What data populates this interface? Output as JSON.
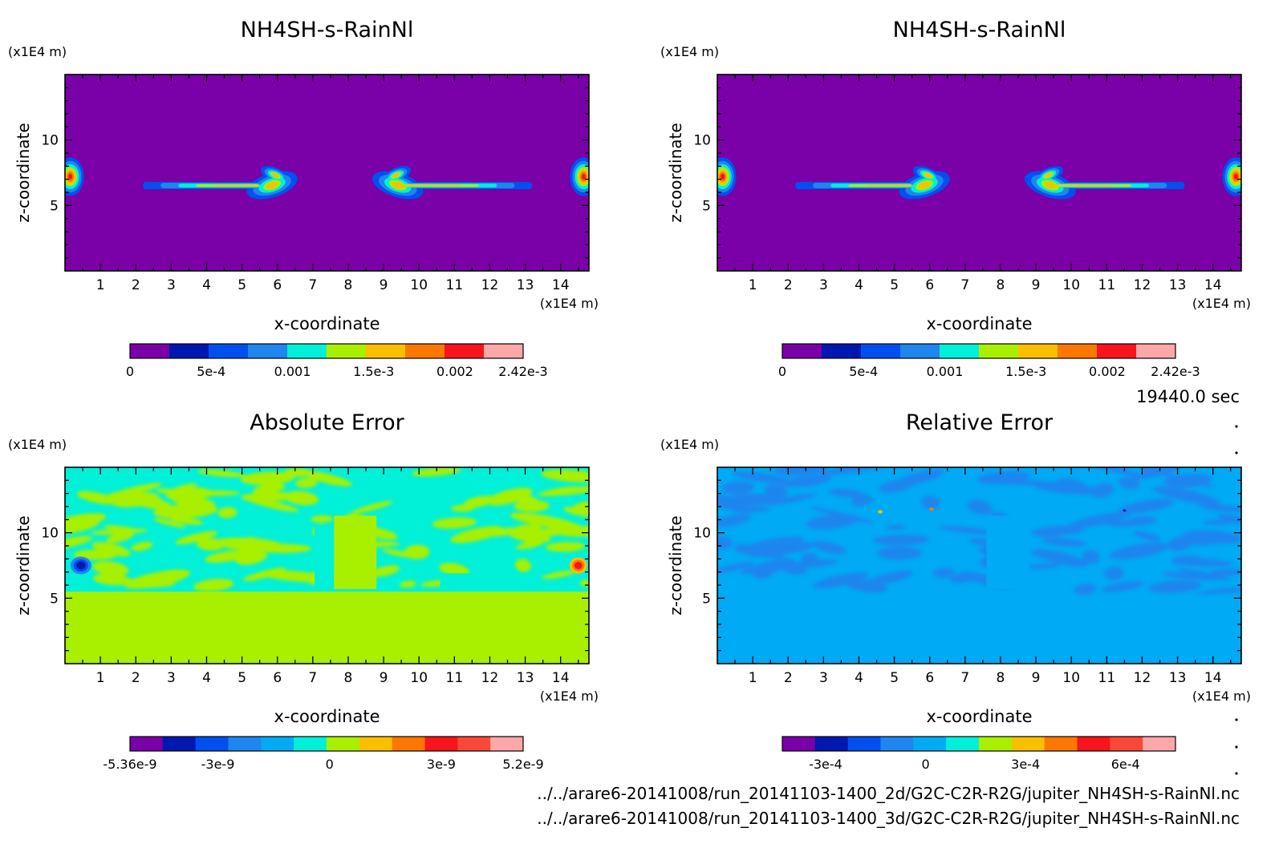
{
  "time_label": "19440.0 sec",
  "file_paths": [
    "../../arare6-20141008/run_20141103-1400_2d/G2C-C2R-R2G/jupiter_NH4SH-s-RainNl.nc",
    "../../arare6-20141008/run_20141103-1400_3d/G2C-C2R-R2G/jupiter_NH4SH-s-RainNl.nc"
  ],
  "colors": {
    "purple": "#7a00a8",
    "navy": "#0018b0",
    "blue": "#0050f0",
    "azure": "#1e86ee",
    "sky": "#00aaf4",
    "cyan": "#00f0d8",
    "lime": "#a8f000",
    "yellow": "#f8c000",
    "orange": "#fc7800",
    "red": "#f8141c",
    "salmon": "#f84838",
    "pink": "#fca8a8"
  },
  "chart_data": [
    {
      "type": "heatmap",
      "title": "NH4SH-s-RainNl",
      "xlabel": "x-coordinate",
      "ylabel": "z-coordinate",
      "x_unit": "(x1E4 m)",
      "y_unit": "(x1E4 m)",
      "xlim": [
        0,
        14.8
      ],
      "ylim": [
        0,
        15
      ],
      "x_ticks": [
        "1",
        "2",
        "3",
        "4",
        "5",
        "6",
        "7",
        "8",
        "9",
        "10",
        "11",
        "12",
        "13",
        "14"
      ],
      "y_ticks": [
        "5",
        "10"
      ],
      "background_level": 0,
      "colorbar": {
        "range": [
          0,
          0.00242
        ],
        "levels": 10,
        "tick_labels": [
          "0",
          "5e-4",
          "0.001",
          "1.5e-3",
          "0.002",
          "2.42e-3"
        ],
        "tick_values": [
          0,
          0.0005,
          0.001,
          0.0015,
          0.002,
          0.00242
        ],
        "colors": [
          "purple",
          "navy",
          "blue",
          "azure",
          "cyan",
          "lime",
          "yellow",
          "orange",
          "red",
          "pink"
        ]
      }
    },
    {
      "type": "heatmap",
      "title": "NH4SH-s-RainNl",
      "xlabel": "x-coordinate",
      "ylabel": "z-coordinate",
      "x_unit": "(x1E4 m)",
      "y_unit": "(x1E4 m)",
      "xlim": [
        0,
        14.8
      ],
      "ylim": [
        0,
        15
      ],
      "x_ticks": [
        "1",
        "2",
        "3",
        "4",
        "5",
        "6",
        "7",
        "8",
        "9",
        "10",
        "11",
        "12",
        "13",
        "14"
      ],
      "y_ticks": [
        "5",
        "10"
      ],
      "background_level": 0,
      "colorbar": {
        "range": [
          0,
          0.00242
        ],
        "levels": 10,
        "tick_labels": [
          "0",
          "5e-4",
          "0.001",
          "1.5e-3",
          "0.002",
          "2.42e-3"
        ],
        "tick_values": [
          0,
          0.0005,
          0.001,
          0.0015,
          0.002,
          0.00242
        ],
        "colors": [
          "purple",
          "navy",
          "blue",
          "azure",
          "cyan",
          "lime",
          "yellow",
          "orange",
          "red",
          "pink"
        ]
      }
    },
    {
      "type": "heatmap",
      "title": "Absolute Error",
      "xlabel": "x-coordinate",
      "ylabel": "z-coordinate",
      "x_unit": "(x1E4 m)",
      "y_unit": "(x1E4 m)",
      "xlim": [
        0,
        14.8
      ],
      "ylim": [
        0,
        15
      ],
      "x_ticks": [
        "1",
        "2",
        "3",
        "4",
        "5",
        "6",
        "7",
        "8",
        "9",
        "10",
        "11",
        "12",
        "13",
        "14"
      ],
      "y_ticks": [
        "5",
        "10"
      ],
      "background_level": 0,
      "colorbar": {
        "range": [
          -5.36e-09,
          5.2e-09
        ],
        "levels": 11,
        "tick_labels": [
          "-5.36e-9",
          "-3e-9",
          "0",
          "3e-9",
          "5.2e-9"
        ],
        "tick_values": [
          -5.36e-09,
          -3e-09,
          0,
          3e-09,
          5.2e-09
        ],
        "colors": [
          "purple",
          "navy",
          "blue",
          "azure",
          "sky",
          "cyan",
          "lime",
          "yellow",
          "orange",
          "red",
          "salmon",
          "pink"
        ]
      }
    },
    {
      "type": "heatmap",
      "title": "Relative Error",
      "xlabel": "x-coordinate",
      "ylabel": "z-coordinate",
      "x_unit": "(x1E4 m)",
      "y_unit": "(x1E4 m)",
      "xlim": [
        0,
        14.8
      ],
      "ylim": [
        0,
        15
      ],
      "x_ticks": [
        "1",
        "2",
        "3",
        "4",
        "5",
        "6",
        "7",
        "8",
        "9",
        "10",
        "11",
        "12",
        "13",
        "14"
      ],
      "y_ticks": [
        "5",
        "10"
      ],
      "background_level": 0,
      "colorbar": {
        "range": [
          -0.00043,
          0.00075
        ],
        "levels": 11,
        "tick_labels": [
          "-3e-4",
          "0",
          "3e-4",
          "6e-4"
        ],
        "tick_values": [
          -0.0003,
          0,
          0.0003,
          0.0006
        ],
        "colors": [
          "purple",
          "navy",
          "blue",
          "azure",
          "sky",
          "cyan",
          "lime",
          "yellow",
          "orange",
          "red",
          "salmon",
          "pink"
        ]
      }
    }
  ]
}
